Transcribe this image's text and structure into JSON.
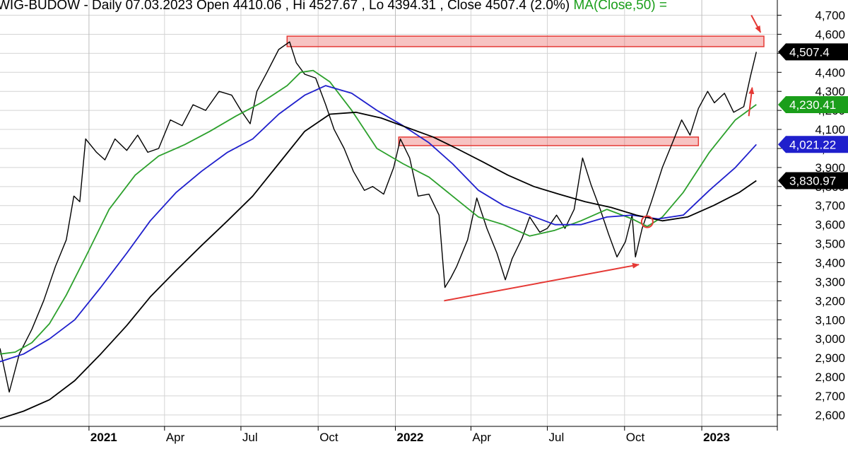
{
  "header": {
    "symbol": "WIG-BUDOW",
    "period": "Daily",
    "date": "07.03.2023",
    "open_label": "Open",
    "open": "4410.06",
    "high_label": "Hi",
    "high": "4527.67",
    "low_label": "Lo",
    "low": "4394.31",
    "close_label": "Close",
    "close": "4507.4",
    "change": "(2.0%)",
    "ma_label": "MA(Close,50) ="
  },
  "chart_data": {
    "type": "line",
    "x_ticks": [
      "2021",
      "Apr",
      "Jul",
      "Oct",
      "2022",
      "Apr",
      "Jul",
      "Oct",
      "2023"
    ],
    "y_ticks": [
      2600,
      2700,
      2800,
      2900,
      3000,
      3100,
      3200,
      3300,
      3400,
      3500,
      3600,
      3700,
      3800,
      3900,
      4000,
      4100,
      4200,
      4300,
      4400,
      4500,
      4600,
      4700
    ],
    "ylim": [
      2540,
      4780
    ],
    "xlim": [
      "2020-09-17",
      "2023-04-01"
    ],
    "grid": true,
    "series": [
      {
        "kind": "price",
        "color": "#000000",
        "points": [
          [
            "2020-09-17",
            2950
          ],
          [
            "2020-09-28",
            2720
          ],
          [
            "2020-10-10",
            2920
          ],
          [
            "2020-10-25",
            3050
          ],
          [
            "2020-11-08",
            3200
          ],
          [
            "2020-11-22",
            3380
          ],
          [
            "2020-12-05",
            3520
          ],
          [
            "2020-12-14",
            3750
          ],
          [
            "2020-12-21",
            3720
          ],
          [
            "2020-12-28",
            4050
          ],
          [
            "2021-01-10",
            3980
          ],
          [
            "2021-01-20",
            3940
          ],
          [
            "2021-02-01",
            4050
          ],
          [
            "2021-02-15",
            3990
          ],
          [
            "2021-02-28",
            4070
          ],
          [
            "2021-03-12",
            3980
          ],
          [
            "2021-03-25",
            4000
          ],
          [
            "2021-04-08",
            4150
          ],
          [
            "2021-04-22",
            4120
          ],
          [
            "2021-05-05",
            4230
          ],
          [
            "2021-05-20",
            4200
          ],
          [
            "2021-06-05",
            4300
          ],
          [
            "2021-06-20",
            4280
          ],
          [
            "2021-07-01",
            4200
          ],
          [
            "2021-07-12",
            4130
          ],
          [
            "2021-07-20",
            4300
          ],
          [
            "2021-08-01",
            4400
          ],
          [
            "2021-08-15",
            4520
          ],
          [
            "2021-08-28",
            4560
          ],
          [
            "2021-09-05",
            4450
          ],
          [
            "2021-09-15",
            4390
          ],
          [
            "2021-09-28",
            4370
          ],
          [
            "2021-10-10",
            4230
          ],
          [
            "2021-10-20",
            4100
          ],
          [
            "2021-11-01",
            4000
          ],
          [
            "2021-11-12",
            3880
          ],
          [
            "2021-11-25",
            3780
          ],
          [
            "2021-12-05",
            3800
          ],
          [
            "2021-12-18",
            3760
          ],
          [
            "2021-12-30",
            3900
          ],
          [
            "2022-01-07",
            4050
          ],
          [
            "2022-01-18",
            3950
          ],
          [
            "2022-01-28",
            3750
          ],
          [
            "2022-02-10",
            3760
          ],
          [
            "2022-02-22",
            3650
          ],
          [
            "2022-03-01",
            3270
          ],
          [
            "2022-03-08",
            3320
          ],
          [
            "2022-03-15",
            3380
          ],
          [
            "2022-03-28",
            3520
          ],
          [
            "2022-04-08",
            3740
          ],
          [
            "2022-04-20",
            3580
          ],
          [
            "2022-05-02",
            3450
          ],
          [
            "2022-05-12",
            3310
          ],
          [
            "2022-05-20",
            3420
          ],
          [
            "2022-06-01",
            3530
          ],
          [
            "2022-06-10",
            3640
          ],
          [
            "2022-06-22",
            3560
          ],
          [
            "2022-07-01",
            3580
          ],
          [
            "2022-07-12",
            3650
          ],
          [
            "2022-07-22",
            3580
          ],
          [
            "2022-08-02",
            3680
          ],
          [
            "2022-08-12",
            3950
          ],
          [
            "2022-08-22",
            3810
          ],
          [
            "2022-09-02",
            3680
          ],
          [
            "2022-09-12",
            3550
          ],
          [
            "2022-09-22",
            3430
          ],
          [
            "2022-10-02",
            3510
          ],
          [
            "2022-10-10",
            3650
          ],
          [
            "2022-10-14",
            3430
          ],
          [
            "2022-10-22",
            3580
          ],
          [
            "2022-11-02",
            3720
          ],
          [
            "2022-11-15",
            3900
          ],
          [
            "2022-11-28",
            4040
          ],
          [
            "2022-12-08",
            4150
          ],
          [
            "2022-12-18",
            4070
          ],
          [
            "2022-12-28",
            4210
          ],
          [
            "2023-01-08",
            4300
          ],
          [
            "2023-01-16",
            4240
          ],
          [
            "2023-01-28",
            4290
          ],
          [
            "2023-02-08",
            4190
          ],
          [
            "2023-02-20",
            4220
          ],
          [
            "2023-02-28",
            4380
          ],
          [
            "2023-03-07",
            4507.4
          ]
        ]
      },
      {
        "kind": "ma",
        "color": "#2ca02c",
        "points": [
          [
            "2020-09-17",
            2920
          ],
          [
            "2020-10-05",
            2930
          ],
          [
            "2020-10-25",
            2980
          ],
          [
            "2020-11-15",
            3080
          ],
          [
            "2020-12-05",
            3230
          ],
          [
            "2020-12-28",
            3430
          ],
          [
            "2021-01-25",
            3680
          ],
          [
            "2021-02-25",
            3860
          ],
          [
            "2021-03-25",
            3960
          ],
          [
            "2021-04-25",
            4020
          ],
          [
            "2021-05-25",
            4090
          ],
          [
            "2021-06-25",
            4170
          ],
          [
            "2021-07-25",
            4240
          ],
          [
            "2021-08-25",
            4330
          ],
          [
            "2021-09-10",
            4400
          ],
          [
            "2021-09-25",
            4410
          ],
          [
            "2021-10-15",
            4350
          ],
          [
            "2021-11-10",
            4200
          ],
          [
            "2021-12-10",
            4000
          ],
          [
            "2022-01-10",
            3920
          ],
          [
            "2022-02-10",
            3850
          ],
          [
            "2022-03-10",
            3750
          ],
          [
            "2022-04-10",
            3640
          ],
          [
            "2022-05-10",
            3600
          ],
          [
            "2022-06-10",
            3540
          ],
          [
            "2022-07-10",
            3570
          ],
          [
            "2022-08-10",
            3620
          ],
          [
            "2022-09-10",
            3680
          ],
          [
            "2022-10-10",
            3630
          ],
          [
            "2022-10-28",
            3590
          ],
          [
            "2022-11-15",
            3640
          ],
          [
            "2022-12-10",
            3770
          ],
          [
            "2023-01-10",
            3980
          ],
          [
            "2023-02-10",
            4150
          ],
          [
            "2023-03-07",
            4230.41
          ]
        ]
      },
      {
        "kind": "ma",
        "color": "#1f1fcc",
        "points": [
          [
            "2020-09-17",
            2880
          ],
          [
            "2020-10-15",
            2920
          ],
          [
            "2020-11-15",
            3000
          ],
          [
            "2020-12-15",
            3100
          ],
          [
            "2021-01-15",
            3270
          ],
          [
            "2021-02-15",
            3450
          ],
          [
            "2021-03-15",
            3620
          ],
          [
            "2021-04-15",
            3770
          ],
          [
            "2021-05-15",
            3880
          ],
          [
            "2021-06-15",
            3980
          ],
          [
            "2021-07-15",
            4050
          ],
          [
            "2021-08-15",
            4180
          ],
          [
            "2021-09-15",
            4280
          ],
          [
            "2021-10-10",
            4330
          ],
          [
            "2021-11-10",
            4290
          ],
          [
            "2021-12-10",
            4200
          ],
          [
            "2022-01-10",
            4120
          ],
          [
            "2022-02-10",
            4030
          ],
          [
            "2022-03-10",
            3920
          ],
          [
            "2022-04-10",
            3780
          ],
          [
            "2022-05-10",
            3700
          ],
          [
            "2022-06-10",
            3650
          ],
          [
            "2022-07-10",
            3600
          ],
          [
            "2022-08-10",
            3600
          ],
          [
            "2022-09-10",
            3640
          ],
          [
            "2022-10-10",
            3650
          ],
          [
            "2022-11-10",
            3630
          ],
          [
            "2022-12-10",
            3650
          ],
          [
            "2023-01-10",
            3780
          ],
          [
            "2023-02-10",
            3900
          ],
          [
            "2023-03-07",
            4021.22
          ]
        ]
      },
      {
        "kind": "ma",
        "color": "#000000",
        "points": [
          [
            "2020-09-17",
            2580
          ],
          [
            "2020-10-15",
            2620
          ],
          [
            "2020-11-15",
            2680
          ],
          [
            "2020-12-15",
            2780
          ],
          [
            "2021-01-15",
            2920
          ],
          [
            "2021-02-15",
            3070
          ],
          [
            "2021-03-15",
            3220
          ],
          [
            "2021-04-15",
            3360
          ],
          [
            "2021-05-15",
            3490
          ],
          [
            "2021-06-15",
            3620
          ],
          [
            "2021-07-15",
            3750
          ],
          [
            "2021-08-15",
            3920
          ],
          [
            "2021-09-15",
            4090
          ],
          [
            "2021-10-15",
            4180
          ],
          [
            "2021-11-15",
            4190
          ],
          [
            "2021-12-15",
            4160
          ],
          [
            "2022-01-15",
            4110
          ],
          [
            "2022-02-15",
            4060
          ],
          [
            "2022-03-15",
            4000
          ],
          [
            "2022-04-15",
            3930
          ],
          [
            "2022-05-15",
            3860
          ],
          [
            "2022-06-15",
            3800
          ],
          [
            "2022-07-15",
            3760
          ],
          [
            "2022-08-15",
            3720
          ],
          [
            "2022-09-15",
            3690
          ],
          [
            "2022-10-15",
            3650
          ],
          [
            "2022-11-15",
            3620
          ],
          [
            "2022-12-15",
            3640
          ],
          [
            "2023-01-15",
            3700
          ],
          [
            "2023-02-15",
            3770
          ],
          [
            "2023-03-07",
            3830.97
          ]
        ]
      }
    ],
    "badges": [
      {
        "text": "4,507.4",
        "value": 4507.4,
        "bg": "#000000",
        "fg": "#ffffff"
      },
      {
        "text": "4,230.41",
        "value": 4230.41,
        "bg": "#1a9e1a",
        "fg": "#ffffff"
      },
      {
        "text": "4,021.22",
        "value": 4021.22,
        "bg": "#1f1fcc",
        "fg": "#ffffff"
      },
      {
        "text": "3,830.97",
        "value": 3830.97,
        "bg": "#000000",
        "fg": "#ffffff"
      }
    ],
    "annotations": [
      {
        "kind": "zone",
        "x_start": "2021-08-25",
        "x_end": "2023-03-16",
        "y_low": 4535,
        "y_high": 4590,
        "color": "#e53935"
      },
      {
        "kind": "zone",
        "x_start": "2022-01-05",
        "x_end": "2022-12-28",
        "y_low": 4015,
        "y_high": 4060,
        "color": "#e53935"
      },
      {
        "kind": "arrow",
        "from": [
          "2022-02-28",
          3200
        ],
        "to": [
          "2022-10-18",
          3390
        ],
        "color": "#e53935"
      },
      {
        "kind": "arrow",
        "from": [
          "2023-02-26",
          4170
        ],
        "to": [
          "2023-03-02",
          4320
        ],
        "color": "#e53935"
      },
      {
        "kind": "arrow",
        "from": [
          "2023-03-01",
          4700
        ],
        "to": [
          "2023-03-12",
          4610
        ],
        "color": "#e53935"
      },
      {
        "kind": "circle",
        "at": [
          "2022-10-28",
          3615
        ],
        "color": "#e53935"
      }
    ]
  }
}
